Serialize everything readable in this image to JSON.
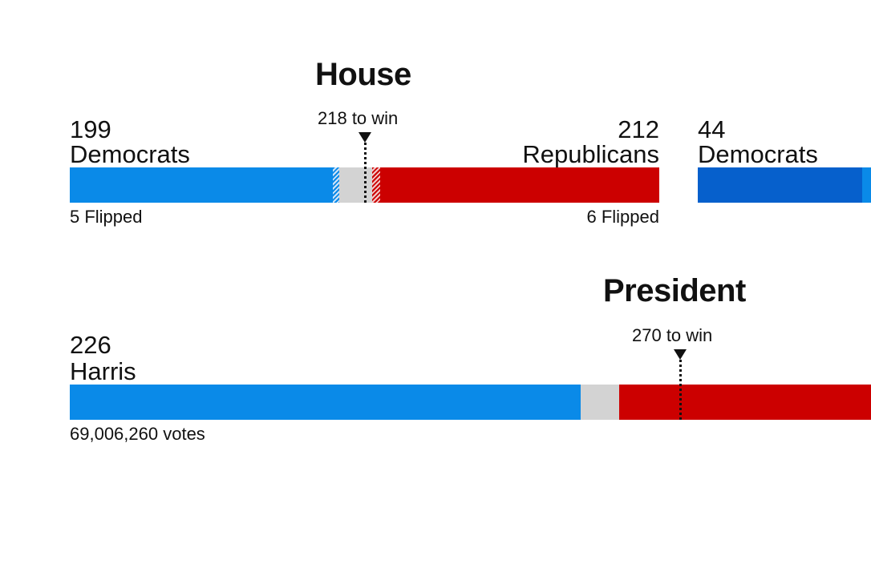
{
  "colors": {
    "dem": "#0a8ae8",
    "dem_dark": "#0660cc",
    "rep": "#cc0000",
    "undecided": "#d3d3d3"
  },
  "house": {
    "title": "House",
    "to_win_label": "218 to win",
    "dem": {
      "count": "199",
      "label": "Democrats",
      "flipped": "5 Flipped"
    },
    "rep": {
      "count": "212",
      "label": "Republicans",
      "flipped": "6 Flipped"
    }
  },
  "senate_partial": {
    "dem": {
      "count": "44",
      "label": "Democrats"
    }
  },
  "president": {
    "title": "President",
    "to_win_label": "270 to win",
    "dem": {
      "count": "226",
      "label": "Harris",
      "votes": "69,006,260 votes"
    }
  },
  "chart_data": [
    {
      "type": "bar",
      "title": "House",
      "total": 435,
      "threshold": 218,
      "series": [
        {
          "name": "Democrats",
          "values": [
            199
          ],
          "flipped": 5
        },
        {
          "name": "Republicans",
          "values": [
            212
          ],
          "flipped": 6
        }
      ]
    },
    {
      "type": "bar",
      "title": "President",
      "total": 538,
      "threshold": 270,
      "series": [
        {
          "name": "Harris",
          "values": [
            226
          ]
        }
      ]
    }
  ]
}
